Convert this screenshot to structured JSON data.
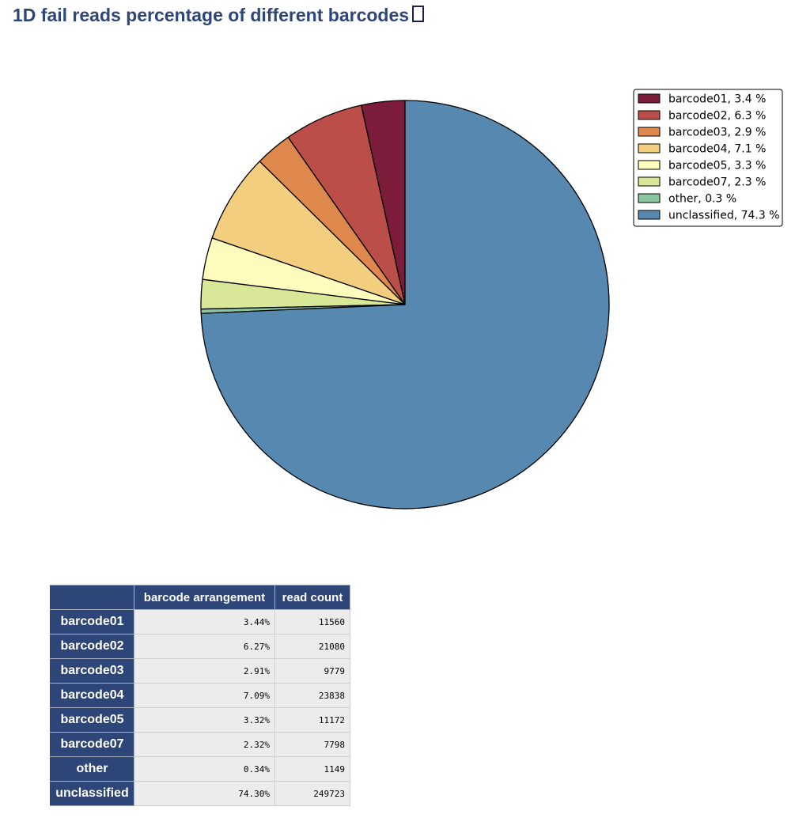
{
  "page": {
    "title": "1D fail reads percentage of different barcodes"
  },
  "chart_data": {
    "type": "pie",
    "title": "",
    "start_angle_deg": 90,
    "direction": "counterclockwise",
    "legend_position": "top-right",
    "slices": [
      {
        "label": "barcode01",
        "value": 3.44,
        "legend": "barcode01, 3.4 %",
        "color": "#7b1c3a"
      },
      {
        "label": "barcode02",
        "value": 6.27,
        "legend": "barcode02, 6.3 %",
        "color": "#bb4e48"
      },
      {
        "label": "barcode03",
        "value": 2.91,
        "legend": "barcode03, 2.9 %",
        "color": "#de884d"
      },
      {
        "label": "barcode04",
        "value": 7.09,
        "legend": "barcode04, 7.1 %",
        "color": "#f2ce7e"
      },
      {
        "label": "barcode05",
        "value": 3.32,
        "legend": "barcode05, 3.3 %",
        "color": "#fdfcbc"
      },
      {
        "label": "barcode07",
        "value": 2.32,
        "legend": "barcode07, 2.3 %",
        "color": "#d8e898"
      },
      {
        "label": "other",
        "value": 0.34,
        "legend": "other, 0.3 %",
        "color": "#8cc5a0"
      },
      {
        "label": "unclassified",
        "value": 74.3,
        "legend": "unclassified, 74.3 %",
        "color": "#5789b0"
      }
    ]
  },
  "table": {
    "headers": [
      "",
      "barcode arrangement",
      "read count"
    ],
    "rows": [
      {
        "name": "barcode01",
        "pct": "3.44%",
        "count": "11560"
      },
      {
        "name": "barcode02",
        "pct": "6.27%",
        "count": "21080"
      },
      {
        "name": "barcode03",
        "pct": "2.91%",
        "count": "9779"
      },
      {
        "name": "barcode04",
        "pct": "7.09%",
        "count": "23838"
      },
      {
        "name": "barcode05",
        "pct": "3.32%",
        "count": "11172"
      },
      {
        "name": "barcode07",
        "pct": "2.32%",
        "count": "7798"
      },
      {
        "name": "other",
        "pct": "0.34%",
        "count": "1149"
      },
      {
        "name": "unclassified",
        "pct": "74.30%",
        "count": "249723"
      }
    ]
  }
}
